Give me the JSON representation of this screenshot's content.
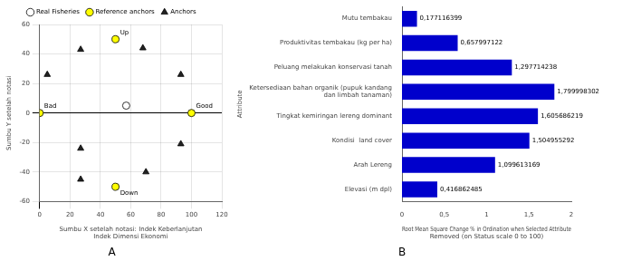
{
  "chart_data": [
    {
      "type": "scatter",
      "title": "A",
      "xlabel": "Sumbu X setelah notasi: Indek Keberlanjutan\nIndek Dimensi Ekonomi",
      "ylabel": "Sumbu Y setelah notasi",
      "xlim": [
        0,
        120
      ],
      "ylim": [
        -60,
        60
      ],
      "xticks": [
        0,
        20,
        40,
        60,
        80,
        100,
        120
      ],
      "yticks": [
        -60,
        -40,
        -20,
        0,
        20,
        40,
        60
      ],
      "grid": true,
      "legend": "top",
      "series": [
        {
          "name": "Real Fisheries",
          "color": "#ffffff",
          "marker": "circle",
          "x": [
            57
          ],
          "values": [
            5
          ]
        },
        {
          "name": "Reference anchors",
          "color": "#ffff00",
          "marker": "circle",
          "x": [
            50,
            50,
            0,
            100
          ],
          "values": [
            50,
            -50,
            0,
            0
          ]
        },
        {
          "name": "Anchors",
          "color": "#222222",
          "marker": "triangle",
          "x": [
            5,
            27,
            27,
            27,
            68,
            70,
            93,
            93
          ],
          "values": [
            26,
            43,
            -24,
            -45,
            44,
            -40,
            26,
            -21
          ]
        }
      ],
      "annotations": [
        {
          "text": "Up",
          "x": 50,
          "y": 50
        },
        {
          "text": "Down",
          "x": 50,
          "y": -50
        },
        {
          "text": "Bad",
          "x": 0,
          "y": 0
        },
        {
          "text": "Good",
          "x": 100,
          "y": 0
        }
      ]
    },
    {
      "type": "bar",
      "orientation": "horizontal",
      "title": "B",
      "xlabel": "Root Mean Square Change % in Ordination when Selected Attribute\nRemoved (on Status scale 0 to 100)",
      "ylabel": "Attribute",
      "categories": [
        "Mutu tembakau",
        "Produktivitas tembakau (kg per ha)",
        "Peluang melakukan konservasi tanah",
        "Ketersediaan bahan organik (pupuk kandang\ndan limbah tanaman)",
        "Tingkat kemiringan lereng dominant",
        "Kondisi  land cover",
        "Arah Lereng",
        "Elevasi (m dpl)"
      ],
      "values": [
        0.177116399,
        0.657997122,
        1.297714238,
        1.799998302,
        1.605686219,
        1.504955292,
        1.099613169,
        0.416862485
      ],
      "value_labels": [
        "0,177116399",
        "0,657997122",
        "1,297714238",
        "1,799998302",
        "1,605686219",
        "1,504955292",
        "1,099613169",
        "0,416862485"
      ],
      "data_labels": true,
      "color": "#0000cc",
      "xlim": [
        0,
        2
      ],
      "xticks": [
        0,
        {
          "value": 0.5,
          "label": "0,5"
        },
        1,
        {
          "value": 1.5,
          "label": "1,5"
        },
        2
      ],
      "grid": false
    }
  ]
}
